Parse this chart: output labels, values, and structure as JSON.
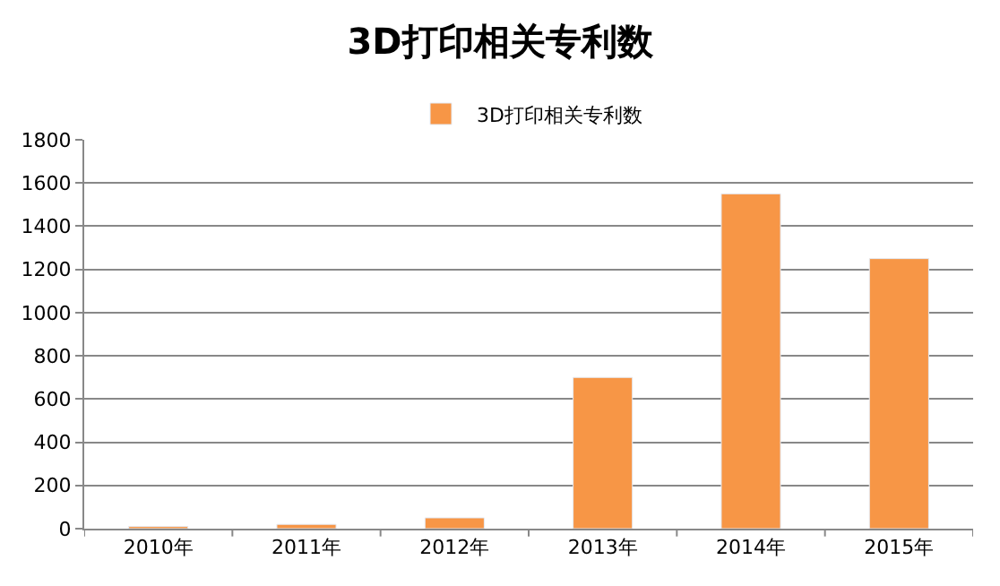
{
  "chart_data": {
    "type": "bar",
    "title": "3D打印相关专利数",
    "categories": [
      "2010年",
      "2011年",
      "2012年",
      "2013年",
      "2014年",
      "2015年"
    ],
    "series": [
      {
        "name": "3D打印相关专利数",
        "color": "#f79646",
        "values": [
          10,
          20,
          50,
          700,
          1550,
          1250
        ]
      }
    ],
    "ylim": [
      0,
      1800
    ],
    "yticks": [
      0,
      200,
      400,
      600,
      800,
      1000,
      1200,
      1400,
      1600,
      1800
    ],
    "grid": "y",
    "legend": "top"
  }
}
